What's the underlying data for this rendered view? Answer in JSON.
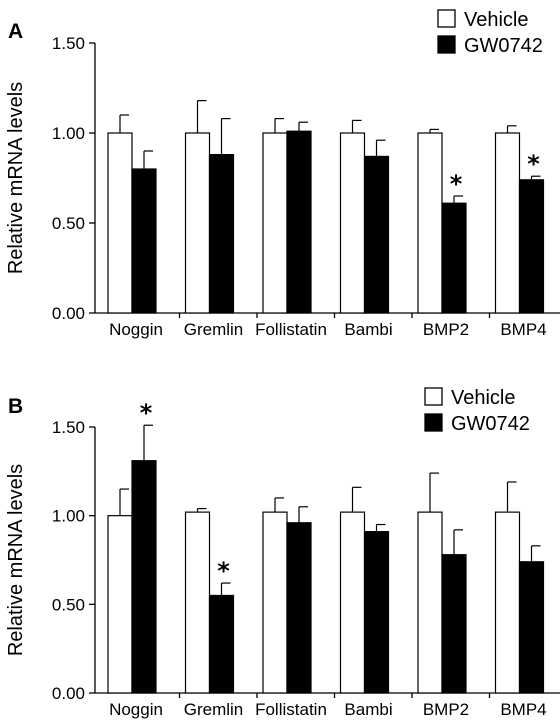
{
  "colors": {
    "vehicle_fill": "#ffffff",
    "gw_fill": "#000000",
    "stroke": "#000000"
  },
  "chart_data": [
    {
      "type": "bar",
      "panel": "A",
      "ylabel": "Relative mRNA levels",
      "ylim": [
        0,
        1.5
      ],
      "yticks": [
        "0.00",
        "0.50",
        "1.00",
        "1.50"
      ],
      "categories": [
        "Noggin",
        "Gremlin",
        "Follistatin",
        "Bambi",
        "BMP2",
        "BMP4"
      ],
      "legend_position": "top-right",
      "series": [
        {
          "name": "Vehicle",
          "values": [
            1.0,
            1.0,
            1.0,
            1.0,
            1.0,
            1.0
          ],
          "errors": [
            0.1,
            0.18,
            0.08,
            0.07,
            0.02,
            0.04
          ]
        },
        {
          "name": "GW0742",
          "values": [
            0.8,
            0.88,
            1.01,
            0.87,
            0.61,
            0.74
          ],
          "errors": [
            0.1,
            0.2,
            0.05,
            0.09,
            0.04,
            0.02
          ]
        }
      ],
      "significance": [
        {
          "category": "BMP2",
          "series": "GW0742",
          "symbol": "*"
        },
        {
          "category": "BMP4",
          "series": "GW0742",
          "symbol": "*"
        }
      ]
    },
    {
      "type": "bar",
      "panel": "B",
      "ylabel": "Relative mRNA levels",
      "ylim": [
        0,
        1.5
      ],
      "yticks": [
        "0.00",
        "0.50",
        "1.00",
        "1.50"
      ],
      "categories": [
        "Noggin",
        "Gremlin",
        "Follistatin",
        "Bambi",
        "BMP2",
        "BMP4"
      ],
      "legend_position": "top-right",
      "series": [
        {
          "name": "Vehicle",
          "values": [
            1.0,
            1.02,
            1.02,
            1.02,
            1.02,
            1.02
          ],
          "errors": [
            0.15,
            0.02,
            0.08,
            0.14,
            0.22,
            0.17
          ]
        },
        {
          "name": "GW0742",
          "values": [
            1.31,
            0.55,
            0.96,
            0.91,
            0.78,
            0.74
          ],
          "errors": [
            0.2,
            0.07,
            0.09,
            0.04,
            0.14,
            0.09
          ]
        }
      ],
      "significance": [
        {
          "category": "Noggin",
          "series": "GW0742",
          "symbol": "*"
        },
        {
          "category": "Gremlin",
          "series": "GW0742",
          "symbol": "*"
        }
      ]
    }
  ]
}
